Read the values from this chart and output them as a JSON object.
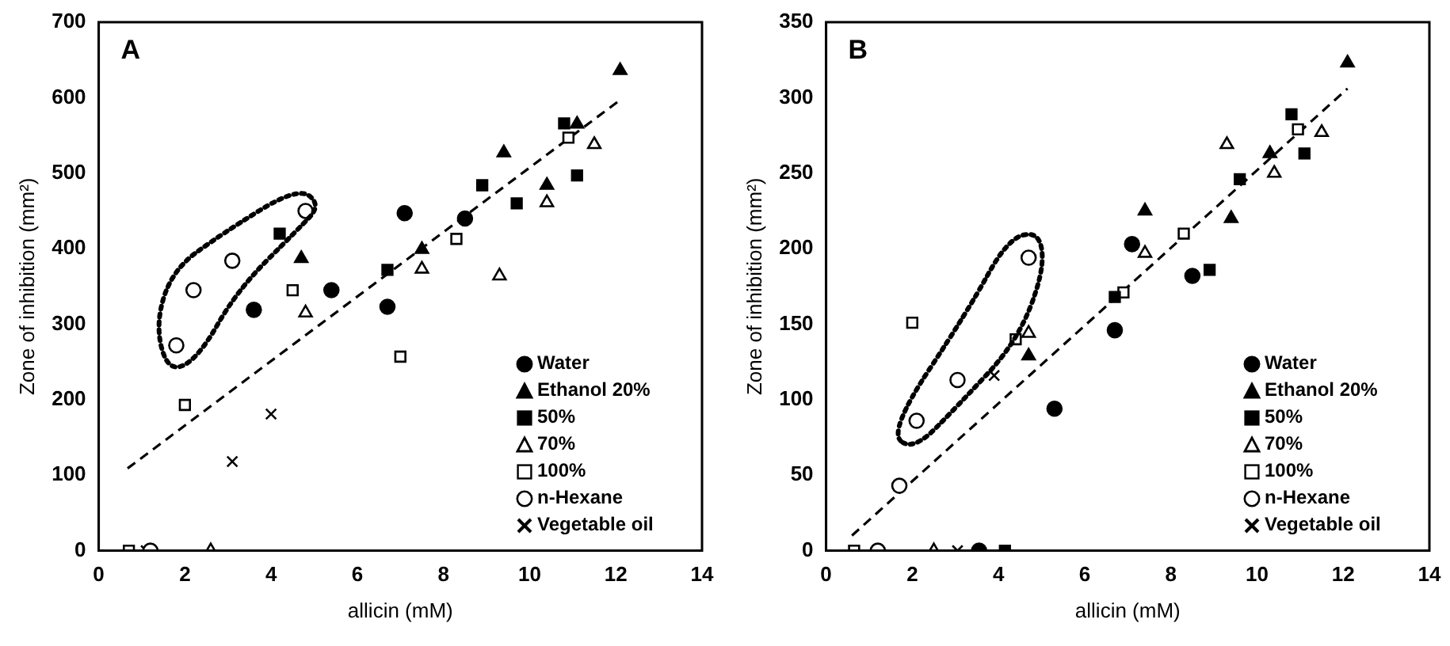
{
  "chart_data": [
    {
      "type": "scatter",
      "annotations": [
        "A"
      ],
      "xlabel": "allicin (mM)",
      "ylabel": "Zone of inhibition (mm²)",
      "xlim": [
        0,
        14
      ],
      "xticks": [
        0,
        2,
        4,
        6,
        8,
        10,
        12,
        14
      ],
      "ylim": [
        0,
        700
      ],
      "yticks": [
        0,
        100,
        200,
        300,
        400,
        500,
        600,
        700
      ],
      "grid": false,
      "legend": "bottom right",
      "series": [
        {
          "name": "Water",
          "color": "#000000",
          "marker": "circle",
          "x": [
            3.6,
            5.4,
            6.7,
            7.1,
            8.5
          ],
          "values": [
            319,
            345,
            323,
            447,
            440
          ]
        },
        {
          "name": "Ethanol 20%",
          "color": "#000000",
          "marker": "triangle",
          "x": [
            4.7,
            7.5,
            9.4,
            10.4,
            11.1,
            12.1
          ],
          "values": [
            387,
            399,
            527,
            484,
            565,
            636
          ]
        },
        {
          "name": "50%",
          "color": "#000000",
          "marker": "square",
          "x": [
            4.2,
            6.7,
            8.9,
            9.7,
            10.8,
            11.1
          ],
          "values": [
            420,
            372,
            484,
            460,
            566,
            497
          ]
        },
        {
          "name": "70%",
          "color": "#ffffff",
          "marker": "triangle",
          "x": [
            2.6,
            4.8,
            7.5,
            9.3,
            10.4,
            11.5
          ],
          "values": [
            0,
            315,
            373,
            364,
            461,
            538
          ]
        },
        {
          "name": "100%",
          "color": "#ffffff",
          "marker": "square",
          "x": [
            0.7,
            2.0,
            4.5,
            7.0,
            8.3,
            10.9
          ],
          "values": [
            0,
            193,
            345,
            257,
            413,
            547
          ]
        },
        {
          "name": "n-Hexane",
          "color": "#ffffff",
          "marker": "circle",
          "x": [
            1.2,
            1.8,
            2.2,
            3.1,
            4.8
          ],
          "values": [
            0,
            272,
            345,
            384,
            450
          ]
        },
        {
          "name": "Vegetable oil",
          "color": "#000000",
          "marker": "cross",
          "x": [
            1.1,
            3.1,
            4.0
          ],
          "values": [
            0,
            118,
            181
          ]
        },
        {
          "type": "line",
          "color": "#000000",
          "marker": "none",
          "line_style": "dashed",
          "x": [
            0.67,
            12.1
          ],
          "values": [
            109,
            597
          ]
        }
      ]
    },
    {
      "type": "scatter",
      "annotations": [
        "B"
      ],
      "xlabel": "allicin (mM)",
      "ylabel": "Zone of inhibition (mm²)",
      "xlim": [
        0,
        14
      ],
      "xticks": [
        0,
        2,
        4,
        6,
        8,
        10,
        12,
        14
      ],
      "ylim": [
        0,
        350
      ],
      "yticks": [
        0,
        50,
        100,
        150,
        200,
        250,
        300,
        350
      ],
      "grid": false,
      "legend": "bottom right",
      "series": [
        {
          "name": "Water",
          "color": "#000000",
          "marker": "circle",
          "x": [
            3.55,
            5.3,
            6.7,
            7.1,
            8.5
          ],
          "values": [
            0,
            94,
            146,
            203,
            182
          ]
        },
        {
          "name": "Ethanol 20%",
          "color": "#000000",
          "marker": "triangle",
          "x": [
            4.7,
            7.4,
            9.4,
            10.3,
            12.1
          ],
          "values": [
            129,
            225,
            220,
            263,
            323
          ]
        },
        {
          "name": "50%",
          "color": "#000000",
          "marker": "square",
          "x": [
            4.15,
            6.7,
            8.9,
            9.6,
            10.8,
            11.1
          ],
          "values": [
            0,
            168,
            186,
            246,
            289,
            263
          ]
        },
        {
          "name": "70%",
          "color": "#ffffff",
          "marker": "triangle",
          "x": [
            2.5,
            4.7,
            7.4,
            9.3,
            10.4,
            11.5
          ],
          "values": [
            0,
            144,
            197,
            269,
            250,
            277
          ]
        },
        {
          "name": "100%",
          "color": "#ffffff",
          "marker": "square",
          "x": [
            0.65,
            2.0,
            4.4,
            6.9,
            8.3,
            10.95
          ],
          "values": [
            0,
            151,
            140,
            171,
            210,
            279
          ]
        },
        {
          "name": "n-Hexane",
          "color": "#ffffff",
          "marker": "circle",
          "x": [
            1.2,
            1.7,
            2.1,
            3.05,
            4.7
          ],
          "values": [
            0,
            43,
            86,
            113,
            194
          ]
        },
        {
          "name": "Vegetable oil",
          "color": "#000000",
          "marker": "cross",
          "x": [
            3.05,
            3.9
          ],
          "values": [
            0,
            116
          ]
        },
        {
          "type": "line",
          "color": "#000000",
          "marker": "none",
          "line_style": "dashed",
          "x": [
            0.6,
            12.1
          ],
          "values": [
            10,
            306
          ]
        }
      ]
    }
  ]
}
